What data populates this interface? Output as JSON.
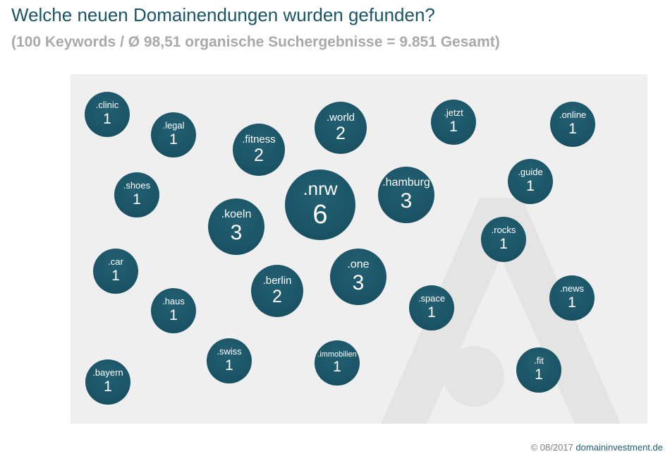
{
  "header": {
    "title": "Welche neuen Domainendungen wurden gefunden?",
    "subtitle": "(100 Keywords / Ø 98,51 organische Suchergebnisse = 9.851 Gesamt)"
  },
  "footer": {
    "copyright": "© 08/2017",
    "brand": "domaininvestment.de"
  },
  "colors": {
    "bubble": "#1b5567",
    "title": "#1a5566",
    "subtitle": "#a9a9a9",
    "panel": "#efefef",
    "watermark": "#e3e3e3"
  },
  "chart_data": {
    "type": "bubble",
    "unit": "count of domains per new TLD",
    "items": [
      {
        "label": ".clinic",
        "value": 1
      },
      {
        "label": ".legal",
        "value": 1
      },
      {
        "label": ".fitness",
        "value": 2
      },
      {
        "label": ".world",
        "value": 2
      },
      {
        "label": ".jetzt",
        "value": 1
      },
      {
        "label": ".online",
        "value": 1
      },
      {
        "label": ".shoes",
        "value": 1
      },
      {
        "label": ".nrw",
        "value": 6
      },
      {
        "label": ".hamburg",
        "value": 3
      },
      {
        "label": ".guide",
        "value": 1
      },
      {
        "label": ".koeln",
        "value": 3
      },
      {
        "label": ".rocks",
        "value": 1
      },
      {
        "label": ".car",
        "value": 1
      },
      {
        "label": ".one",
        "value": 3
      },
      {
        "label": ".berlin",
        "value": 2
      },
      {
        "label": ".news",
        "value": 1
      },
      {
        "label": ".haus",
        "value": 1
      },
      {
        "label": ".space",
        "value": 1
      },
      {
        "label": ".swiss",
        "value": 1
      },
      {
        "label": ".immobilien",
        "value": 1
      },
      {
        "label": ".fit",
        "value": 1
      },
      {
        "label": ".bayern",
        "value": 1
      }
    ]
  }
}
